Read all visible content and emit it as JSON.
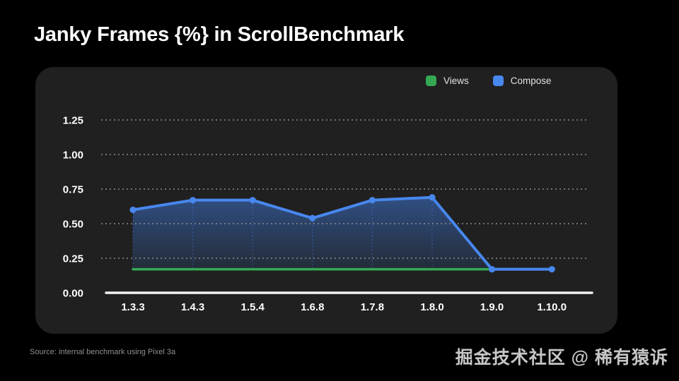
{
  "title": "Janky Frames {%} in ScrollBenchmark",
  "source": "Source: internal benchmark using Pixel 3a",
  "watermark": "掘金技术社区 @ 稀有猿诉",
  "colors": {
    "background": "#000000",
    "card": "#202020",
    "axis": "#f2f2f2",
    "gridline": "#8e8e8e",
    "tick_text": "#ffffff",
    "views_green": "#34A853",
    "compose_blue": "#4887EE"
  },
  "chart_data": {
    "type": "line",
    "title": "Janky Frames {%} in ScrollBenchmark",
    "xlabel": "",
    "ylabel": "",
    "categories": [
      "1.3.3",
      "1.4.3",
      "1.5.4",
      "1.6.8",
      "1.7.8",
      "1.8.0",
      "1.9.0",
      "1.10.0"
    ],
    "series": [
      {
        "name": "Views",
        "color": "#34A853",
        "values": [
          0.17,
          0.17,
          0.17,
          0.17,
          0.17,
          0.17,
          0.17,
          0.17
        ],
        "dots": false,
        "area": false
      },
      {
        "name": "Compose",
        "color": "#4887EE",
        "values": [
          0.6,
          0.67,
          0.67,
          0.54,
          0.67,
          0.69,
          0.17,
          0.17
        ],
        "dots": true,
        "area": true
      }
    ],
    "ylim": [
      0,
      1.35
    ],
    "yticks": [
      {
        "label": "1.25",
        "value": 1.25
      },
      {
        "label": "1.00",
        "value": 1.0
      },
      {
        "label": "0.75",
        "value": 0.75
      },
      {
        "label": "0.50",
        "value": 0.5
      },
      {
        "label": "0.25",
        "value": 0.25
      },
      {
        "label": "0.00",
        "value": 0.0
      }
    ],
    "grid": "dotted horizontal",
    "legend_position": "top-right"
  }
}
